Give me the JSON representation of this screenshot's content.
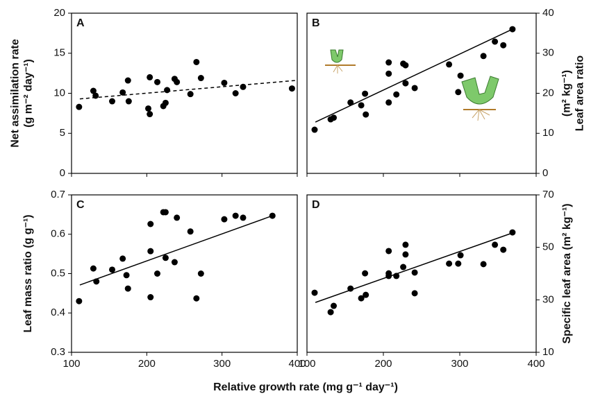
{
  "x_label": "Relative growth rate (mg g⁻¹ day⁻¹)",
  "chart_data": [
    {
      "type": "scatter",
      "label": "A",
      "ylabel": [
        "Net assimilation rate",
        "(g m⁻² day⁻¹)"
      ],
      "yaxis_side": "left",
      "xtick_labels": false,
      "xlim": [
        100,
        400
      ],
      "xticks": [
        100,
        200,
        300,
        400
      ],
      "ylim": [
        0,
        20
      ],
      "yticks": [
        0,
        5,
        10,
        15,
        20
      ],
      "color": "#000000",
      "x": [
        110,
        129,
        132,
        154,
        168,
        175,
        176,
        202,
        204,
        204,
        214,
        222,
        225,
        227,
        237,
        240,
        258,
        266,
        272,
        303,
        318,
        328,
        393
      ],
      "y": [
        8.3,
        10.3,
        9.7,
        9.0,
        10.1,
        11.6,
        9.0,
        8.1,
        7.4,
        12.0,
        11.4,
        8.4,
        8.8,
        10.4,
        11.8,
        11.4,
        9.9,
        13.9,
        11.9,
        11.3,
        10.0,
        10.8,
        10.6
      ],
      "trend": {
        "x": [
          111,
          398
        ],
        "y": [
          9.3,
          11.6
        ],
        "dashed": true
      }
    },
    {
      "type": "scatter",
      "label": "B",
      "ylabel": [
        "Leaf area ratio",
        "(m² kg⁻¹)"
      ],
      "yaxis_side": "right",
      "xtick_labels": false,
      "xlim": [
        100,
        400
      ],
      "xticks": [
        100,
        200,
        300,
        400
      ],
      "ylim": [
        0,
        40
      ],
      "yticks": [
        0,
        10,
        20,
        30,
        40
      ],
      "color": "#000000",
      "x": [
        110,
        131,
        135,
        157,
        171,
        176,
        177,
        207,
        207,
        207,
        217,
        226,
        229,
        229,
        241,
        286,
        298,
        301,
        331,
        346,
        357,
        369
      ],
      "y": [
        10.9,
        13.5,
        13.9,
        17.7,
        17.0,
        19.9,
        14.7,
        24.9,
        27.7,
        17.7,
        19.7,
        27.4,
        27.0,
        22.5,
        21.3,
        27.2,
        20.3,
        24.4,
        29.3,
        32.9,
        32.0,
        36.0
      ],
      "trend": {
        "x": [
          111,
          369
        ],
        "y": [
          12.8,
          36.0
        ],
        "dashed": false
      }
    },
    {
      "type": "scatter",
      "label": "C",
      "ylabel": [
        "Leaf mass ratio (g g⁻¹)"
      ],
      "yaxis_side": "left",
      "xtick_labels": true,
      "xlim": [
        100,
        400
      ],
      "xticks": [
        100,
        200,
        300,
        400
      ],
      "ylim": [
        0.3,
        0.7
      ],
      "yticks": [
        0.3,
        0.4,
        0.5,
        0.6,
        0.7
      ],
      "color": "#000000",
      "x": [
        110,
        129,
        133,
        154,
        168,
        173,
        175,
        205,
        205,
        205,
        214,
        222,
        225,
        225,
        237,
        240,
        258,
        266,
        272,
        303,
        318,
        328,
        367
      ],
      "y": [
        0.43,
        0.513,
        0.48,
        0.51,
        0.538,
        0.496,
        0.462,
        0.626,
        0.557,
        0.44,
        0.5,
        0.656,
        0.656,
        0.54,
        0.529,
        0.642,
        0.607,
        0.437,
        0.5,
        0.638,
        0.647,
        0.642,
        0.647
      ],
      "trend": {
        "x": [
          111,
          367
        ],
        "y": [
          0.471,
          0.647
        ],
        "dashed": false
      }
    },
    {
      "type": "scatter",
      "label": "D",
      "ylabel": [
        "Specific leaf area (m² kg⁻¹)"
      ],
      "yaxis_side": "right",
      "xtick_labels": true,
      "xlim": [
        100,
        400
      ],
      "xticks": [
        100,
        200,
        300,
        400
      ],
      "ylim": [
        10,
        70
      ],
      "yticks": [
        10,
        30,
        50,
        70
      ],
      "color": "#000000",
      "x": [
        110,
        131,
        135,
        157,
        171,
        176,
        177,
        207,
        207,
        207,
        217,
        226,
        229,
        229,
        241,
        241,
        286,
        298,
        301,
        331,
        346,
        357,
        369
      ],
      "y": [
        32.7,
        25.3,
        27.7,
        34.3,
        30.6,
        40.1,
        31.9,
        48.6,
        40.1,
        39.1,
        39.1,
        42.5,
        51.0,
        47.3,
        40.4,
        32.5,
        43.8,
        43.8,
        47.0,
        43.6,
        51.0,
        49.1,
        55.7
      ],
      "trend": {
        "x": [
          111,
          369
        ],
        "y": [
          29.0,
          55.5
        ],
        "dashed": false
      }
    }
  ]
}
